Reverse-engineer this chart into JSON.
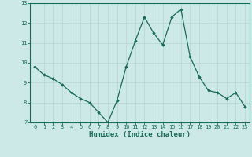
{
  "x": [
    0,
    1,
    2,
    3,
    4,
    5,
    6,
    7,
    8,
    9,
    10,
    11,
    12,
    13,
    14,
    15,
    16,
    17,
    18,
    19,
    20,
    21,
    22,
    23
  ],
  "y": [
    9.8,
    9.4,
    9.2,
    8.9,
    8.5,
    8.2,
    8.0,
    7.5,
    7.0,
    8.1,
    9.8,
    11.1,
    12.3,
    11.5,
    10.9,
    12.3,
    12.7,
    10.3,
    9.3,
    8.6,
    8.5,
    8.2,
    8.5,
    7.8
  ],
  "xlim": [
    -0.5,
    23.5
  ],
  "ylim": [
    7,
    13
  ],
  "xticks": [
    0,
    1,
    2,
    3,
    4,
    5,
    6,
    7,
    8,
    9,
    10,
    11,
    12,
    13,
    14,
    15,
    16,
    17,
    18,
    19,
    20,
    21,
    22,
    23
  ],
  "yticks": [
    7,
    8,
    9,
    10,
    11,
    12,
    13
  ],
  "xlabel": "Humidex (Indice chaleur)",
  "line_color": "#1a6b5a",
  "marker": "D",
  "marker_size": 1.8,
  "bg_color": "#cce9e7",
  "grid_color": "#b8d8d6",
  "tick_label_color": "#1a6b5a",
  "xlabel_color": "#1a6b5a",
  "tick_fontsize": 5.0,
  "xlabel_fontsize": 6.5
}
